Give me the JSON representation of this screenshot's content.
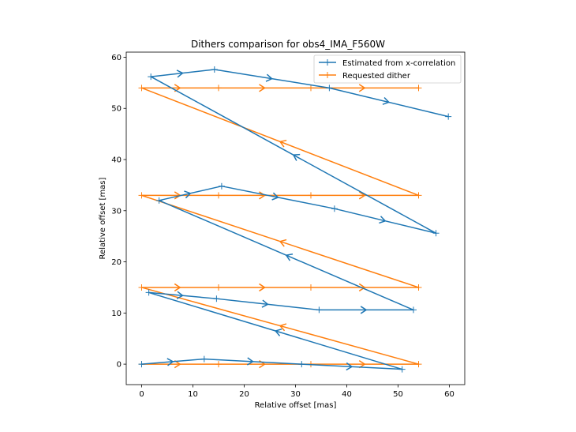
{
  "chart_data": {
    "type": "line",
    "title": "Dithers comparison for obs4_IMA_F560W",
    "xlabel": "Relative offset [mas]",
    "ylabel": "Relative offset [mas]",
    "xlim": [
      -3,
      63
    ],
    "ylim": [
      -4,
      61
    ],
    "xticks": [
      0,
      10,
      20,
      30,
      40,
      50,
      60
    ],
    "yticks": [
      0,
      10,
      20,
      30,
      40,
      50,
      60
    ],
    "legend_position": "top-right",
    "series": [
      {
        "name": "Estimated from x-correlation",
        "color": "#1f77b4",
        "points": [
          [
            0,
            0
          ],
          [
            12.2,
            1.0
          ],
          [
            31.2,
            0.0
          ],
          [
            50.8,
            -1.0
          ],
          [
            1.4,
            14.0
          ],
          [
            14.6,
            12.8
          ],
          [
            34.6,
            10.6
          ],
          [
            53.0,
            10.6
          ],
          [
            3.4,
            32.0
          ],
          [
            15.6,
            34.8
          ],
          [
            37.6,
            30.4
          ],
          [
            57.4,
            25.6
          ],
          [
            1.8,
            56.2
          ],
          [
            14.2,
            57.6
          ],
          [
            36.6,
            54.0
          ],
          [
            59.8,
            48.4
          ]
        ]
      },
      {
        "name": "Requested dither",
        "color": "#ff7f0e",
        "points": [
          [
            0,
            0
          ],
          [
            15,
            0
          ],
          [
            33,
            0
          ],
          [
            54,
            0
          ],
          [
            0,
            15
          ],
          [
            15,
            15
          ],
          [
            33,
            15
          ],
          [
            54,
            15
          ],
          [
            0,
            33
          ],
          [
            15,
            33
          ],
          [
            33,
            33
          ],
          [
            54,
            33
          ],
          [
            0,
            54
          ],
          [
            15,
            54
          ],
          [
            33,
            54
          ],
          [
            54,
            54
          ]
        ]
      }
    ]
  }
}
